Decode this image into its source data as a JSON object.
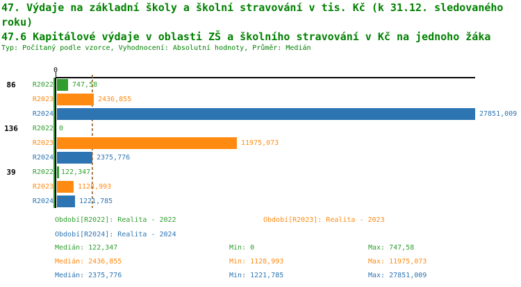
{
  "header": {
    "title_line1": "47. Výdaje na základní školy a školní stravování v tis. Kč (k 31.12. sledovaného roku)",
    "title_line2": "47.6 Kapitálové výdaje v oblasti ZŠ a školního stravování v Kč na jednoho žáka",
    "subtitle": "Typ: Počítaný podle vzorce, Vyhodnocení: Absolutní hodnoty, Průměr: Medián"
  },
  "colors": {
    "title_green": "#008000",
    "green": "#2F9E2F",
    "orange": "#FF8A12",
    "blue": "#2D74B2",
    "axis": "#000000"
  },
  "chart_data": {
    "type": "bar",
    "orientation": "horizontal",
    "x_axis": {
      "tick_labels": [
        "0"
      ],
      "min": 0,
      "max": 27851.009
    },
    "grid": false,
    "series_colors": {
      "R2022": "green",
      "R2023": "orange",
      "R2024": "blue"
    },
    "groups": [
      {
        "label": "86",
        "bars": [
          {
            "series": "R2022",
            "value": 747.58,
            "value_label": "747,58"
          },
          {
            "series": "R2023",
            "value": 2436.855,
            "value_label": "2436,855"
          },
          {
            "series": "R2024",
            "value": 27851.009,
            "value_label": "27851,009"
          }
        ]
      },
      {
        "label": "136",
        "bars": [
          {
            "series": "R2022",
            "value": 0,
            "value_label": "0"
          },
          {
            "series": "R2023",
            "value": 11975.073,
            "value_label": "11975,073"
          },
          {
            "series": "R2024",
            "value": 2375.776,
            "value_label": "2375,776"
          }
        ]
      },
      {
        "label": "39",
        "bars": [
          {
            "series": "R2022",
            "value": 122.347,
            "value_label": "122,347"
          },
          {
            "series": "R2023",
            "value": 1128.993,
            "value_label": "1128,993"
          },
          {
            "series": "R2024",
            "value": 1221.785,
            "value_label": "1221,785"
          }
        ]
      }
    ],
    "median_lines": [
      {
        "series": "R2022",
        "value": 122.347,
        "style": "solid"
      },
      {
        "series": "R2023",
        "value": 2436.855,
        "style": "dashed"
      },
      {
        "series": "R2024",
        "value": 2375.776,
        "style": "dashed"
      }
    ]
  },
  "legend": {
    "items": [
      {
        "series": "R2022",
        "label": "Období[R2022]: Realita - 2022"
      },
      {
        "series": "R2023",
        "label": "Období[R2023]: Realita - 2023"
      },
      {
        "series": "R2024",
        "label": "Období[R2024]: Realita - 2024"
      }
    ]
  },
  "stats": {
    "rows": [
      {
        "series": "R2022",
        "median": "Medián: 122,347",
        "min": "Min: 0",
        "max": "Max: 747,58"
      },
      {
        "series": "R2023",
        "median": "Medián: 2436,855",
        "min": "Min: 1128,993",
        "max": "Max: 11975,073"
      },
      {
        "series": "R2024",
        "median": "Medián: 2375,776",
        "min": "Min: 1221,785",
        "max": "Max: 27851,009"
      }
    ]
  }
}
